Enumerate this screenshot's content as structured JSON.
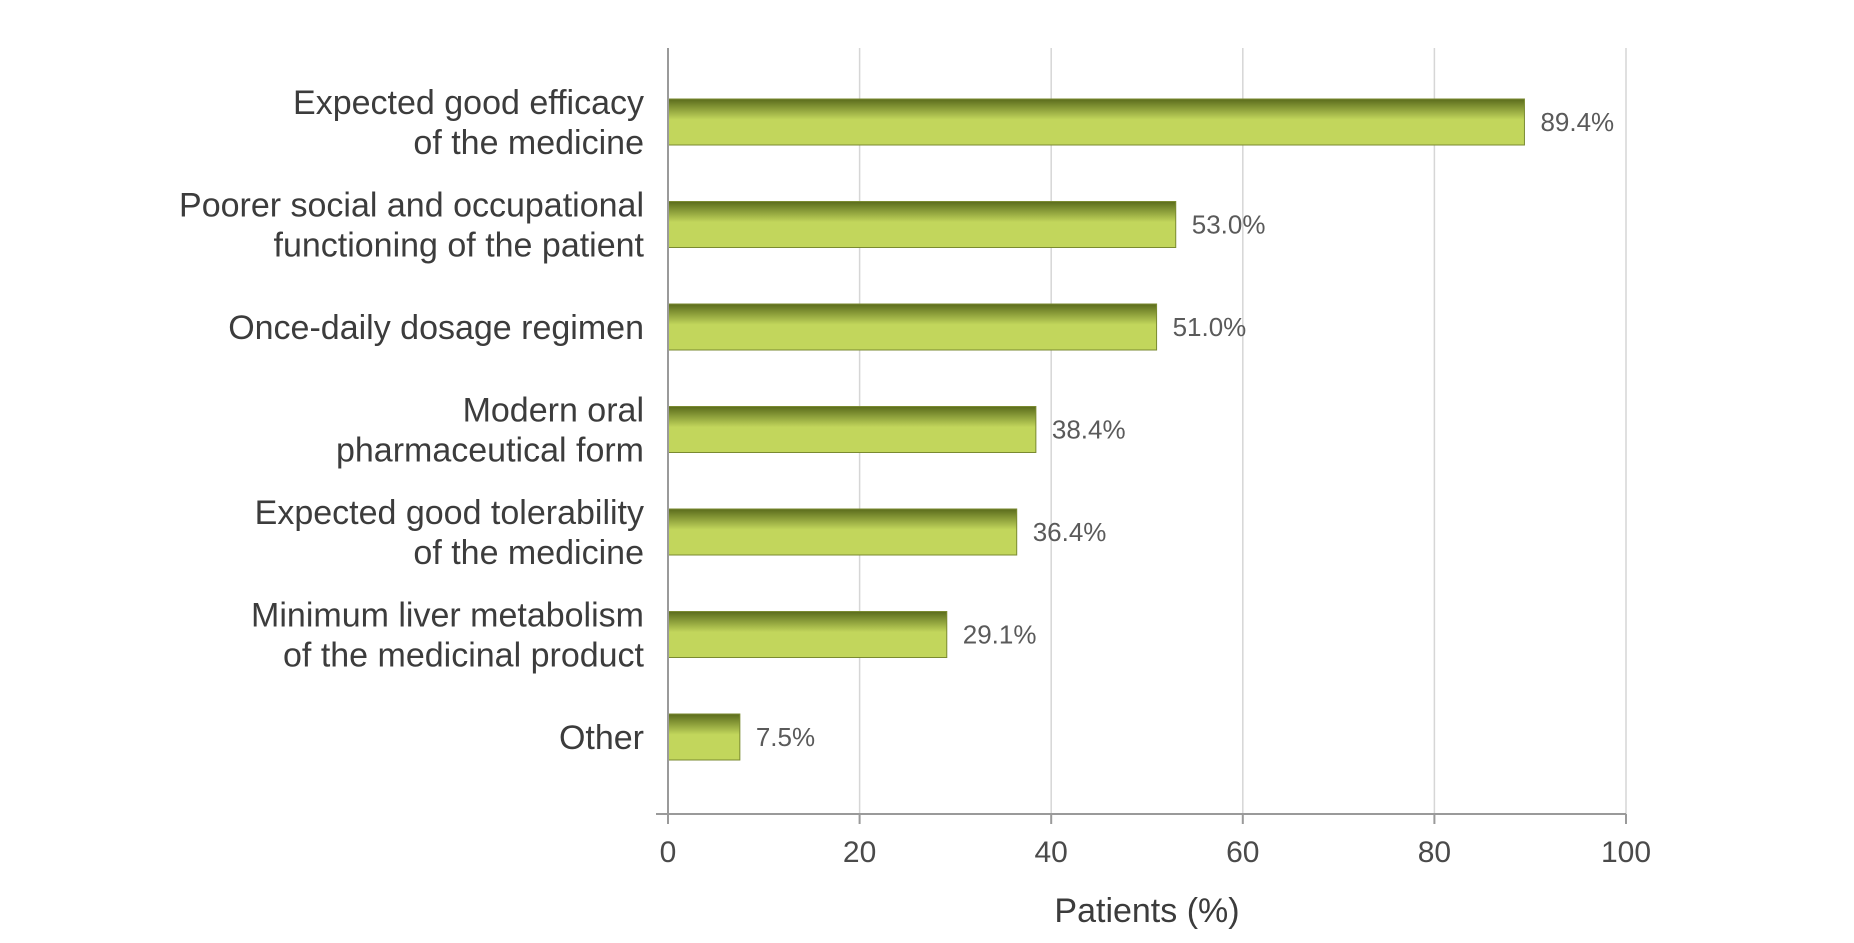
{
  "chart_data": {
    "type": "bar",
    "orientation": "horizontal",
    "categories": [
      [
        "Expected good efficacy",
        "of the medicine"
      ],
      [
        "Poorer social and occupational",
        "functioning of the patient"
      ],
      [
        "Once-daily dosage regimen"
      ],
      [
        "Modern oral",
        "pharmaceutical form"
      ],
      [
        "Expected good tolerability",
        "of the medicine"
      ],
      [
        "Minimum liver metabolism",
        "of the medicinal product"
      ],
      [
        "Other"
      ]
    ],
    "values": [
      89.4,
      53.0,
      51.0,
      38.4,
      36.4,
      29.1,
      7.5
    ],
    "value_labels": [
      "89.4%",
      "53.0%",
      "51.0%",
      "38.4%",
      "36.4%",
      "29.1%",
      "7.5%"
    ],
    "xlabel": "Patients (%)",
    "xlim": [
      0,
      100
    ],
    "xticks": [
      0,
      20,
      40,
      60,
      80,
      100
    ],
    "grid": true,
    "colors": {
      "bar_light": "#c2d65c",
      "bar_dark": "#5a6b1c",
      "bar_stroke": "#7a8a30",
      "grid": "#d6d6d6",
      "axis": "#9a9a9a"
    }
  }
}
